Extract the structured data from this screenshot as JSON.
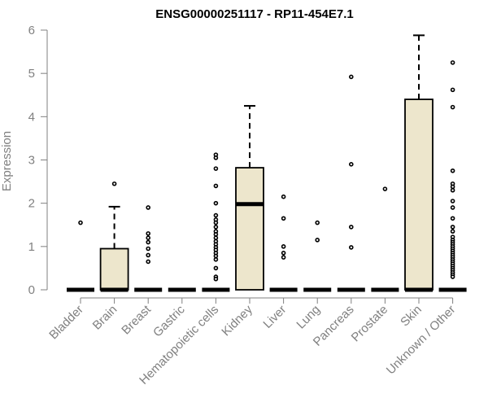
{
  "chart_data": {
    "type": "box",
    "title": "ENSG00000251117 - RP11-454E7.1",
    "xlabel": "",
    "ylabel": "Expression",
    "ylim": [
      0,
      6
    ],
    "yticks": [
      "0",
      "1",
      "2",
      "3",
      "4",
      "5",
      "6"
    ],
    "box_fill": "#ede6cc",
    "box_stroke": "#000000",
    "axis_color": "#808080",
    "categories": [
      "Bladder",
      "Brain",
      "Breast",
      "Gastric",
      "Hematopoietic cells",
      "Kidney",
      "Liver",
      "Lung",
      "Pancreas",
      "Prostate",
      "Skin",
      "Unknown / Other"
    ],
    "boxes": [
      {
        "q1": 0,
        "median": 0,
        "q3": 0,
        "whisker_low": 0,
        "whisker_high": 0,
        "outliers": [
          1.55
        ]
      },
      {
        "q1": 0,
        "median": 0,
        "q3": 0.95,
        "whisker_low": 0,
        "whisker_high": 1.92,
        "outliers": [
          2.45
        ]
      },
      {
        "q1": 0,
        "median": 0,
        "q3": 0,
        "whisker_low": 0,
        "whisker_high": 0,
        "outliers": [
          1.9,
          1.3,
          1.2,
          1.1,
          0.95,
          0.8,
          0.65
        ]
      },
      {
        "q1": 0,
        "median": 0,
        "q3": 0,
        "whisker_low": 0,
        "whisker_high": 0,
        "outliers": []
      },
      {
        "q1": 0,
        "median": 0,
        "q3": 0,
        "whisker_low": 0,
        "whisker_high": 0,
        "outliers": [
          3.12,
          3.05,
          2.8,
          2.4,
          2.0,
          1.72,
          1.62,
          1.55,
          1.45,
          1.35,
          1.28,
          1.2,
          1.12,
          1.05,
          0.98,
          0.92,
          0.85,
          0.78,
          0.7,
          0.5,
          0.3,
          0.25
        ]
      },
      {
        "q1": 0,
        "median": 1.98,
        "q3": 2.82,
        "whisker_low": 0,
        "whisker_high": 4.25,
        "outliers": []
      },
      {
        "q1": 0,
        "median": 0,
        "q3": 0,
        "whisker_low": 0,
        "whisker_high": 0,
        "outliers": [
          2.15,
          1.65,
          1.0,
          0.85,
          0.75
        ]
      },
      {
        "q1": 0,
        "median": 0,
        "q3": 0,
        "whisker_low": 0,
        "whisker_high": 0,
        "outliers": [
          1.55,
          1.15
        ]
      },
      {
        "q1": 0,
        "median": 0,
        "q3": 0,
        "whisker_low": 0,
        "whisker_high": 0,
        "outliers": [
          4.92,
          2.9,
          1.45,
          0.98
        ]
      },
      {
        "q1": 0,
        "median": 0,
        "q3": 0,
        "whisker_low": 0,
        "whisker_high": 0,
        "outliers": [
          2.33
        ]
      },
      {
        "q1": 0,
        "median": 0,
        "q3": 4.4,
        "whisker_low": 0,
        "whisker_high": 5.88,
        "outliers": []
      },
      {
        "q1": 0,
        "median": 0,
        "q3": 0,
        "whisker_low": 0,
        "whisker_high": 0,
        "outliers": [
          5.25,
          4.62,
          4.22,
          2.75,
          2.45,
          2.38,
          2.3,
          2.05,
          1.9,
          1.65,
          1.45,
          1.35,
          1.22,
          1.15,
          1.1,
          1.05,
          1.0,
          0.95,
          0.9,
          0.85,
          0.8,
          0.75,
          0.7,
          0.65,
          0.6,
          0.55,
          0.5,
          0.45,
          0.4,
          0.35,
          0.3
        ]
      }
    ]
  }
}
